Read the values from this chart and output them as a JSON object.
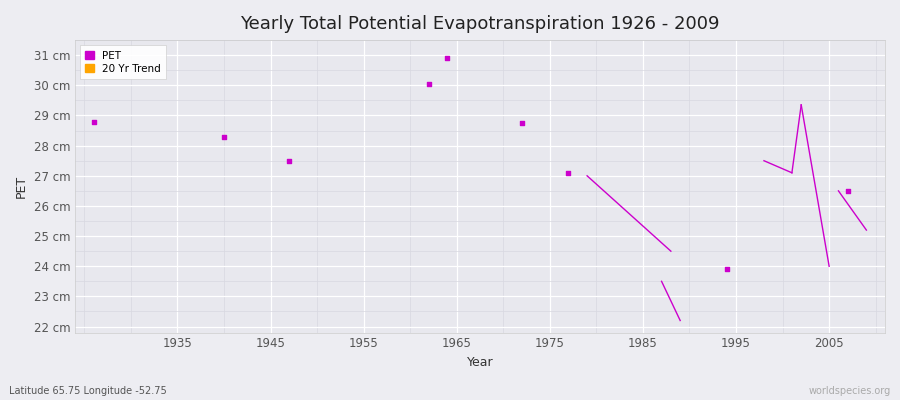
{
  "title": "Yearly Total Potential Evapotranspiration 1926 - 2009",
  "xlabel": "Year",
  "ylabel": "PET",
  "background_color": "#ededf2",
  "plot_bg_color": "#e8e8ee",
  "grid_color": "#ffffff",
  "grid_minor_color": "#d8d8e0",
  "pet_color": "#cc00cc",
  "trend_color": "#ffa500",
  "pet_points": [
    [
      1926,
      28.8
    ],
    [
      1940,
      28.3
    ],
    [
      1947,
      27.5
    ],
    [
      1962,
      30.05
    ],
    [
      1964,
      30.9
    ],
    [
      1972,
      28.75
    ],
    [
      1977,
      27.1
    ],
    [
      1994,
      23.9
    ],
    [
      2007,
      26.5
    ]
  ],
  "trend_segments": [
    [
      [
        1979,
        27.0
      ],
      [
        1988,
        24.5
      ]
    ],
    [
      [
        1987,
        23.5
      ],
      [
        1989,
        22.2
      ]
    ],
    [
      [
        1998,
        27.5
      ],
      [
        2001,
        27.1
      ]
    ],
    [
      [
        2001,
        27.1
      ],
      [
        2002,
        29.35
      ]
    ],
    [
      [
        2002,
        29.35
      ],
      [
        2005,
        24.0
      ]
    ],
    [
      [
        2006,
        26.5
      ],
      [
        2009,
        25.2
      ]
    ]
  ],
  "ylim": [
    21.8,
    31.5
  ],
  "xlim": [
    1924,
    2011
  ],
  "yticks": [
    22,
    23,
    24,
    25,
    26,
    27,
    28,
    29,
    30,
    31
  ],
  "ytick_labels": [
    "22 cm",
    "23 cm",
    "24 cm",
    "25 cm",
    "26 cm",
    "27 cm",
    "28 cm",
    "29 cm",
    "30 cm",
    "31 cm"
  ],
  "xticks": [
    1935,
    1945,
    1955,
    1965,
    1975,
    1985,
    1995,
    2005
  ],
  "title_fontsize": 13,
  "label_fontsize": 9,
  "tick_fontsize": 8.5,
  "watermark": "worldspecies.org",
  "footer_left": "Latitude 65.75 Longitude -52.75"
}
